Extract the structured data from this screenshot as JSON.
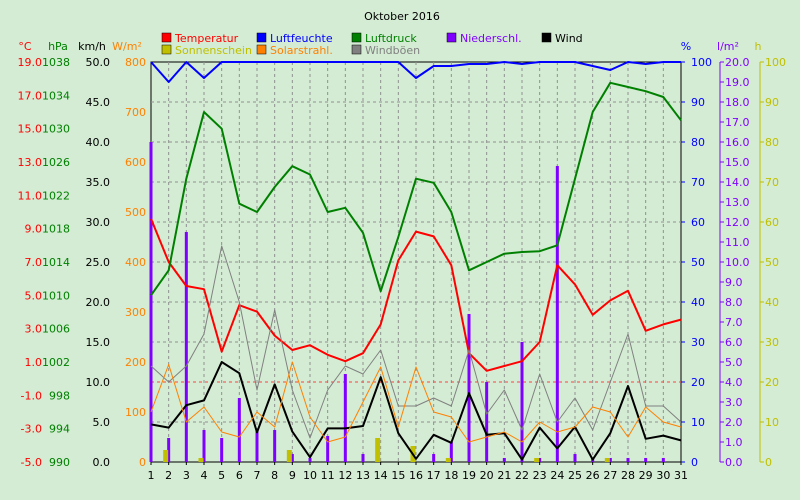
{
  "chart_data": {
    "type": "line",
    "title": "Oktober 2016",
    "x": [
      1,
      2,
      3,
      4,
      5,
      6,
      7,
      8,
      9,
      10,
      11,
      12,
      13,
      14,
      15,
      16,
      17,
      18,
      19,
      20,
      21,
      22,
      23,
      24,
      25,
      26,
      27,
      28,
      29,
      30,
      31
    ],
    "axes": {
      "temperature": {
        "unit": "°C",
        "range": [
          -5,
          20
        ],
        "ticks": [
          "19.0",
          "17.0",
          "15.0",
          "13.0",
          "11.0",
          "9.0",
          "7.0",
          "5.0",
          "3.0",
          "1.0",
          "-1.0",
          "-3.0",
          "-5.0"
        ],
        "color": "#ff0000"
      },
      "pressure": {
        "unit": "hPa",
        "range": [
          990,
          1038
        ],
        "ticks": [
          "1038",
          "1034",
          "1030",
          "1026",
          "1022",
          "1018",
          "1014",
          "1010",
          "1006",
          "1002",
          "998",
          "994",
          "990"
        ],
        "color": "#008000"
      },
      "wind": {
        "unit": "km/h",
        "range": [
          0,
          50
        ],
        "ticks": [
          "50.0",
          "45.0",
          "40.0",
          "35.0",
          "30.0",
          "25.0",
          "20.0",
          "15.0",
          "10.0",
          "5.0",
          "0.0"
        ],
        "color": "#000000"
      },
      "solar": {
        "unit": "W/m²",
        "range": [
          0,
          800
        ],
        "ticks": [
          "800",
          "700",
          "600",
          "500",
          "400",
          "300",
          "200",
          "100",
          "0"
        ],
        "color": "#ff8000"
      },
      "humidity": {
        "unit": "%",
        "range": [
          0,
          100
        ],
        "ticks": [
          "100",
          "90",
          "80",
          "70",
          "60",
          "50",
          "40",
          "30",
          "20",
          "10",
          "0"
        ],
        "color": "#0000ff"
      },
      "precip": {
        "unit": "l/m²",
        "range": [
          0,
          20
        ],
        "ticks": [
          "20.0",
          "19.0",
          "18.0",
          "17.0",
          "16.0",
          "15.0",
          "14.0",
          "13.0",
          "12.0",
          "11.0",
          "10.0",
          "9.0",
          "8.0",
          "7.0",
          "6.0",
          "5.0",
          "4.0",
          "3.0",
          "2.0",
          "1.0",
          "0.0"
        ],
        "color": "#8000ff"
      },
      "sunshine": {
        "unit": "h",
        "range": [
          0,
          100
        ],
        "ticks": [
          "100",
          "90",
          "80",
          "70",
          "60",
          "50",
          "40",
          "30",
          "20",
          "10",
          "0"
        ],
        "color": "#c0c000"
      }
    },
    "legend": [
      {
        "name": "Temperatur",
        "color": "#ff0000"
      },
      {
        "name": "Luftfeuchte",
        "color": "#0000ff"
      },
      {
        "name": "Luftdruck",
        "color": "#008000"
      },
      {
        "name": "Niederschl.",
        "color": "#8000ff"
      },
      {
        "name": "Wind",
        "color": "#000000"
      },
      {
        "name": "Sonnenschein",
        "color": "#c0c000"
      },
      {
        "name": "Solarstrahl.",
        "color": "#ff8000"
      },
      {
        "name": "Windböen",
        "color": "#808080"
      }
    ],
    "series": [
      {
        "name": "Temperatur",
        "axis": "temperature",
        "color": "#ff0000",
        "width": 2,
        "values": [
          10.2,
          7.5,
          6.0,
          5.8,
          1.9,
          4.8,
          4.4,
          2.9,
          2.0,
          2.3,
          1.7,
          1.3,
          1.8,
          3.6,
          7.6,
          9.4,
          9.1,
          7.3,
          1.8,
          0.7,
          1.0,
          1.3,
          2.5,
          7.3,
          6.1,
          4.2,
          5.1,
          5.7,
          3.2,
          3.6,
          3.9
        ]
      },
      {
        "name": "Luftdruck",
        "axis": "pressure",
        "color": "#008000",
        "width": 2,
        "values": [
          1010,
          1013,
          1024,
          1032,
          1030,
          1021,
          1020,
          1023,
          1025.5,
          1024.5,
          1020,
          1020.5,
          1017.5,
          1010.5,
          1017,
          1024,
          1023.5,
          1020,
          1013,
          1014,
          1015,
          1015.2,
          1015.3,
          1016,
          1024,
          1032,
          1035.5,
          1035,
          1034.5,
          1033.8,
          1031
        ]
      },
      {
        "name": "Luftfeuchte",
        "axis": "humidity",
        "color": "#0000ff",
        "width": 2,
        "values": [
          100,
          95,
          100,
          96,
          100,
          100,
          100,
          100,
          100,
          100,
          100,
          100,
          100,
          100,
          100,
          96,
          99,
          99,
          99.5,
          99.5,
          100,
          99.5,
          100,
          100,
          100,
          99,
          98,
          100,
          99.5,
          100,
          100
        ]
      },
      {
        "name": "Wind",
        "axis": "wind",
        "color": "#000000",
        "width": 2,
        "values": [
          4.7,
          4.3,
          7.1,
          7.7,
          12.5,
          11.1,
          3.7,
          9.7,
          3.8,
          0.6,
          4.2,
          4.2,
          4.5,
          10.6,
          3.6,
          0.4,
          3.4,
          2.4,
          8.6,
          3.4,
          3.6,
          0.3,
          4.3,
          1.7,
          4.4,
          0.3,
          3.6,
          9.5,
          2.9,
          3.3,
          2.7
        ]
      },
      {
        "name": "Windböen",
        "axis": "wind",
        "color": "#808080",
        "width": 1,
        "values": [
          12,
          10,
          12,
          16,
          27,
          20,
          9,
          19,
          9,
          3,
          9,
          12,
          11,
          14,
          7,
          7,
          8,
          7,
          14,
          6,
          9,
          4,
          11,
          5,
          8,
          4,
          10,
          16,
          7,
          7,
          5
        ]
      },
      {
        "name": "Solarstrahl.",
        "axis": "solar",
        "color": "#ff8000",
        "width": 1,
        "values": [
          100,
          195,
          80,
          110,
          60,
          50,
          100,
          70,
          200,
          90,
          40,
          50,
          120,
          190,
          70,
          190,
          100,
          90,
          40,
          50,
          60,
          40,
          80,
          60,
          70,
          110,
          100,
          50,
          110,
          80,
          70
        ]
      },
      {
        "name": "Niederschl.",
        "axis": "precip",
        "color": "#8000ff",
        "type": "bar",
        "values": [
          16.0,
          1.2,
          11.5,
          1.6,
          1.2,
          3.2,
          1.6,
          1.6,
          0.4,
          0.2,
          1.3,
          4.4,
          0.4,
          0.0,
          0.0,
          0.0,
          0.4,
          1.0,
          7.4,
          4.0,
          0.2,
          6.0,
          0.2,
          14.8,
          0.4,
          0.2,
          0.2,
          0.2,
          0.2,
          0.2,
          0.0
        ]
      },
      {
        "name": "Sonnenschein",
        "axis": "sunshine",
        "color": "#c0c000",
        "type": "bar",
        "values": [
          0,
          3,
          0,
          1,
          0,
          0,
          0,
          0,
          3,
          0,
          0,
          0,
          0,
          6,
          0,
          4,
          0,
          1,
          0,
          0,
          0,
          0,
          1,
          0,
          0,
          0,
          1,
          0,
          0,
          0,
          0
        ]
      }
    ]
  }
}
